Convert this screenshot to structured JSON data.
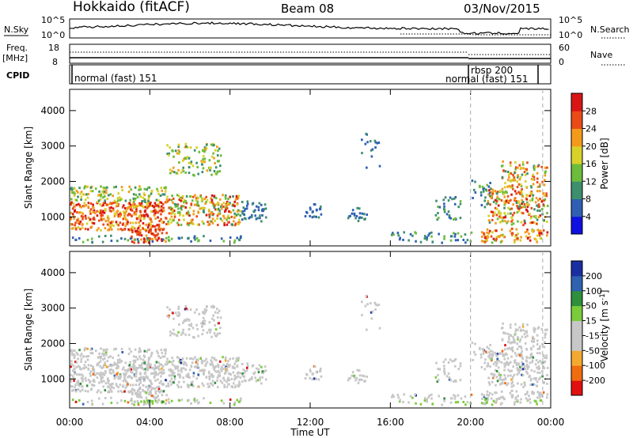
{
  "header": {
    "title": "Hokkaido (fitACF)",
    "beam": "Beam 08",
    "date": "03/Nov/2015"
  },
  "top_panels": {
    "nsky_label": "N.Sky",
    "nsearch_label": "N.Search",
    "nsky_ticks": [
      "10^5",
      "10^0"
    ],
    "nsearch_ticks": [
      "10^5",
      "10^0"
    ],
    "freq_label_1": "Freq.",
    "freq_label_2": "[MHz]",
    "freq_ticks": [
      "18",
      "8"
    ],
    "nave_label": "Nave",
    "nave_ticks": [
      "60",
      "0"
    ],
    "cpid_label": "CPID",
    "cpid_segments": [
      "normal (fast) 151",
      "rbsp 200",
      "normal (fast) 151"
    ]
  },
  "colors": {
    "power_scale": [
      "#1010e0",
      "#2f5fb3",
      "#3d8f6e",
      "#6cbc3c",
      "#d7d12a",
      "#f39a1c",
      "#ea4b16",
      "#d81515"
    ],
    "velocity_scale": [
      "#e01010",
      "#f06c10",
      "#f3a930",
      "#c7c7c7",
      "#c7c7c7",
      "#7acc3a",
      "#2f8f3c",
      "#2f62b0",
      "#1a2fa0"
    ]
  },
  "chart_data": [
    {
      "type": "heatmap",
      "title": "",
      "xlabel": "",
      "ylabel": "Slant Range [km]",
      "x_ticks": [
        "00:00",
        "04:00",
        "08:00",
        "12:00",
        "16:00",
        "20:00",
        "00:00"
      ],
      "xlim_hours": [
        0,
        24
      ],
      "y_ticks": [
        "1000",
        "2000",
        "3000",
        "4000"
      ],
      "ylim_km": [
        180,
        4600
      ],
      "colorbar_label": "Power [dB]",
      "colorbar_ticks": [
        "28",
        "24",
        "20",
        "16",
        "12",
        "8",
        "4"
      ],
      "colorbar_range": [
        0,
        32
      ],
      "dashed_lines_hours": [
        20.0,
        23.6
      ]
    },
    {
      "type": "heatmap",
      "title": "",
      "xlabel": "Time UT",
      "ylabel": "Slant Range [km]",
      "x_ticks": [
        "00:00",
        "04:00",
        "08:00",
        "12:00",
        "16:00",
        "20:00",
        "00:00"
      ],
      "xlim_hours": [
        0,
        24
      ],
      "y_ticks": [
        "1000",
        "2000",
        "3000",
        "4000"
      ],
      "ylim_km": [
        180,
        4600
      ],
      "colorbar_label": "Velocity [m s",
      "colorbar_label_sup": "-1",
      "colorbar_label_end": "]",
      "colorbar_ticks": [
        "200",
        "100",
        "50",
        "15",
        "-15",
        "-50",
        "-100",
        "-200"
      ],
      "dashed_lines_hours": [
        20.0,
        23.6
      ]
    }
  ]
}
